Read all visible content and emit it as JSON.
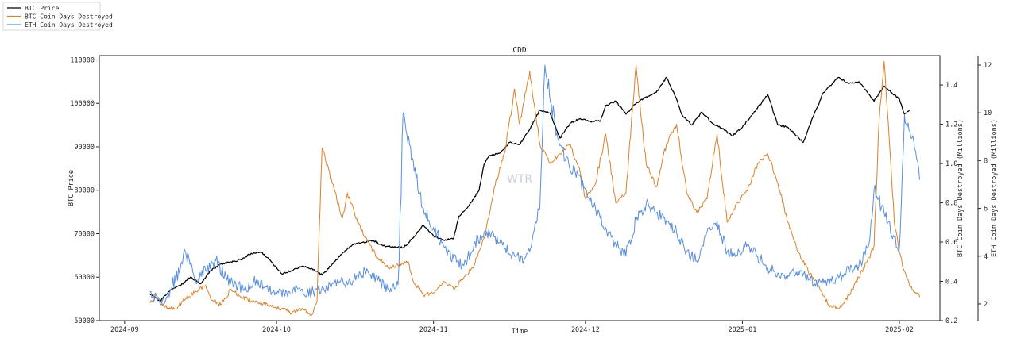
{
  "chart_data": {
    "type": "line",
    "title": "CDD",
    "xlabel": "Time",
    "ylabel_left": "BTC Price",
    "ylabel_right1": "BTC Coin Days Destroyed (Millions)",
    "ylabel_right2": "ETH Coin Days Destroyed (Millions)",
    "watermark": "WTR",
    "legend_position": "top-left",
    "grid": false,
    "x_range": [
      "2024-08-27",
      "2025-02-09"
    ],
    "x_ticks": [
      "2024-09",
      "2024-10",
      "2024-11",
      "2024-12",
      "2025-01",
      "2025-02"
    ],
    "y_left": {
      "range": [
        50000,
        111000
      ],
      "ticks": [
        50000,
        60000,
        70000,
        80000,
        90000,
        100000,
        110000
      ]
    },
    "y_right1": {
      "range": [
        0.2,
        1.55
      ],
      "ticks": [
        "0.2",
        "0.4",
        "0.6",
        "0.8",
        "1.0",
        "1.2",
        "1.4"
      ]
    },
    "y_right2": {
      "range": [
        1.3,
        12.4
      ],
      "ticks": [
        "2",
        "4",
        "6",
        "8",
        "10",
        "12"
      ]
    },
    "series": [
      {
        "name": "BTC Price",
        "axis": "left",
        "color": "#000000",
        "points": [
          [
            "2024-09-06",
            56000
          ],
          [
            "2024-09-08",
            54500
          ],
          [
            "2024-09-10",
            57000
          ],
          [
            "2024-09-12",
            58000
          ],
          [
            "2024-09-14",
            60000
          ],
          [
            "2024-09-16",
            58500
          ],
          [
            "2024-09-18",
            61500
          ],
          [
            "2024-09-20",
            63000
          ],
          [
            "2024-09-22",
            63500
          ],
          [
            "2024-09-24",
            64000
          ],
          [
            "2024-09-26",
            65500
          ],
          [
            "2024-09-28",
            65800
          ],
          [
            "2024-09-30",
            63500
          ],
          [
            "2024-10-02",
            60800
          ],
          [
            "2024-10-04",
            61500
          ],
          [
            "2024-10-06",
            62500
          ],
          [
            "2024-10-08",
            62000
          ],
          [
            "2024-10-10",
            60500
          ],
          [
            "2024-10-12",
            63000
          ],
          [
            "2024-10-14",
            65500
          ],
          [
            "2024-10-16",
            67500
          ],
          [
            "2024-10-18",
            68000
          ],
          [
            "2024-10-20",
            68500
          ],
          [
            "2024-10-22",
            67200
          ],
          [
            "2024-10-24",
            67000
          ],
          [
            "2024-10-26",
            66800
          ],
          [
            "2024-10-28",
            69000
          ],
          [
            "2024-10-30",
            72000
          ],
          [
            "2024-11-01",
            69500
          ],
          [
            "2024-11-03",
            68500
          ],
          [
            "2024-11-05",
            69000
          ],
          [
            "2024-11-06",
            74000
          ],
          [
            "2024-11-08",
            76500
          ],
          [
            "2024-11-10",
            80000
          ],
          [
            "2024-11-11",
            86000
          ],
          [
            "2024-11-12",
            88000
          ],
          [
            "2024-11-14",
            88500
          ],
          [
            "2024-11-16",
            91000
          ],
          [
            "2024-11-18",
            90500
          ],
          [
            "2024-11-20",
            94000
          ],
          [
            "2024-11-22",
            98500
          ],
          [
            "2024-11-24",
            97800
          ],
          [
            "2024-11-26",
            92000
          ],
          [
            "2024-11-28",
            95500
          ],
          [
            "2024-11-30",
            96500
          ],
          [
            "2024-12-02",
            95800
          ],
          [
            "2024-12-04",
            96000
          ],
          [
            "2024-12-05",
            99500
          ],
          [
            "2024-12-07",
            100500
          ],
          [
            "2024-12-09",
            97500
          ],
          [
            "2024-12-11",
            100000
          ],
          [
            "2024-12-13",
            101500
          ],
          [
            "2024-12-15",
            102500
          ],
          [
            "2024-12-17",
            106000
          ],
          [
            "2024-12-19",
            101000
          ],
          [
            "2024-12-20",
            97500
          ],
          [
            "2024-12-22",
            95000
          ],
          [
            "2024-12-24",
            98000
          ],
          [
            "2024-12-26",
            95500
          ],
          [
            "2024-12-28",
            94200
          ],
          [
            "2024-12-30",
            92500
          ],
          [
            "2025-01-01",
            94500
          ],
          [
            "2025-01-03",
            97500
          ],
          [
            "2025-01-06",
            102000
          ],
          [
            "2025-01-08",
            95000
          ],
          [
            "2025-01-10",
            94500
          ],
          [
            "2025-01-13",
            91000
          ],
          [
            "2025-01-15",
            97000
          ],
          [
            "2025-01-17",
            102500
          ],
          [
            "2025-01-20",
            106000
          ],
          [
            "2025-01-22",
            104500
          ],
          [
            "2025-01-24",
            105000
          ],
          [
            "2025-01-27",
            100500
          ],
          [
            "2025-01-29",
            104000
          ],
          [
            "2025-02-01",
            101000
          ],
          [
            "2025-02-02",
            97500
          ],
          [
            "2025-02-03",
            98500
          ]
        ]
      },
      {
        "name": "BTC Coin Days Destroyed",
        "axis": "right1",
        "color": "#d9822b",
        "points": [
          [
            "2024-09-06",
            0.29
          ],
          [
            "2024-09-07",
            0.33
          ],
          [
            "2024-09-09",
            0.27
          ],
          [
            "2024-09-11",
            0.26
          ],
          [
            "2024-09-13",
            0.31
          ],
          [
            "2024-09-15",
            0.35
          ],
          [
            "2024-09-17",
            0.38
          ],
          [
            "2024-09-18",
            0.31
          ],
          [
            "2024-09-20",
            0.28
          ],
          [
            "2024-09-22",
            0.36
          ],
          [
            "2024-09-24",
            0.32
          ],
          [
            "2024-09-26",
            0.3
          ],
          [
            "2024-09-28",
            0.29
          ],
          [
            "2024-09-30",
            0.27
          ],
          [
            "2024-10-02",
            0.26
          ],
          [
            "2024-10-04",
            0.24
          ],
          [
            "2024-10-06",
            0.26
          ],
          [
            "2024-10-08",
            0.23
          ],
          [
            "2024-10-09",
            0.3
          ],
          [
            "2024-10-10",
            1.08
          ],
          [
            "2024-10-12",
            0.9
          ],
          [
            "2024-10-14",
            0.72
          ],
          [
            "2024-10-15",
            0.85
          ],
          [
            "2024-10-17",
            0.7
          ],
          [
            "2024-10-19",
            0.6
          ],
          [
            "2024-10-21",
            0.52
          ],
          [
            "2024-10-23",
            0.47
          ],
          [
            "2024-10-25",
            0.48
          ],
          [
            "2024-10-27",
            0.5
          ],
          [
            "2024-10-28",
            0.4
          ],
          [
            "2024-10-30",
            0.33
          ],
          [
            "2024-11-01",
            0.34
          ],
          [
            "2024-11-03",
            0.4
          ],
          [
            "2024-11-05",
            0.36
          ],
          [
            "2024-11-07",
            0.42
          ],
          [
            "2024-11-09",
            0.48
          ],
          [
            "2024-11-11",
            0.62
          ],
          [
            "2024-11-13",
            0.88
          ],
          [
            "2024-11-15",
            1.05
          ],
          [
            "2024-11-17",
            1.38
          ],
          [
            "2024-11-18",
            1.2
          ],
          [
            "2024-11-20",
            1.47
          ],
          [
            "2024-11-22",
            1.1
          ],
          [
            "2024-11-24",
            1.0
          ],
          [
            "2024-11-26",
            1.05
          ],
          [
            "2024-11-28",
            1.1
          ],
          [
            "2024-11-30",
            0.95
          ],
          [
            "2024-12-01",
            0.82
          ],
          [
            "2024-12-03",
            0.9
          ],
          [
            "2024-12-05",
            1.15
          ],
          [
            "2024-12-07",
            0.8
          ],
          [
            "2024-12-09",
            0.85
          ],
          [
            "2024-12-11",
            1.5
          ],
          [
            "2024-12-13",
            1.0
          ],
          [
            "2024-12-15",
            0.88
          ],
          [
            "2024-12-17",
            1.1
          ],
          [
            "2024-12-19",
            1.2
          ],
          [
            "2024-12-21",
            0.85
          ],
          [
            "2024-12-23",
            0.75
          ],
          [
            "2024-12-25",
            0.82
          ],
          [
            "2024-12-27",
            1.15
          ],
          [
            "2024-12-29",
            0.7
          ],
          [
            "2024-12-31",
            0.8
          ],
          [
            "2025-01-02",
            0.86
          ],
          [
            "2025-01-04",
            1.0
          ],
          [
            "2025-01-06",
            1.05
          ],
          [
            "2025-01-08",
            0.9
          ],
          [
            "2025-01-10",
            0.7
          ],
          [
            "2025-01-12",
            0.55
          ],
          [
            "2025-01-14",
            0.45
          ],
          [
            "2025-01-16",
            0.38
          ],
          [
            "2025-01-18",
            0.28
          ],
          [
            "2025-01-20",
            0.26
          ],
          [
            "2025-01-22",
            0.33
          ],
          [
            "2025-01-24",
            0.42
          ],
          [
            "2025-01-26",
            0.52
          ],
          [
            "2025-01-27",
            0.58
          ],
          [
            "2025-01-28",
            1.22
          ],
          [
            "2025-01-29",
            1.52
          ],
          [
            "2025-01-30",
            1.12
          ],
          [
            "2025-01-31",
            0.7
          ],
          [
            "2025-02-01",
            0.55
          ],
          [
            "2025-02-02",
            0.45
          ],
          [
            "2025-02-03",
            0.38
          ],
          [
            "2025-02-05",
            0.32
          ]
        ]
      },
      {
        "name": "ETH Coin Days Destroyed",
        "axis": "right2",
        "color": "#5b8fd9",
        "points": [
          [
            "2024-09-06",
            2.5
          ],
          [
            "2024-09-08",
            2.0
          ],
          [
            "2024-09-10",
            2.6
          ],
          [
            "2024-09-12",
            3.5
          ],
          [
            "2024-09-13",
            4.2
          ],
          [
            "2024-09-15",
            3.0
          ],
          [
            "2024-09-17",
            3.4
          ],
          [
            "2024-09-19",
            3.8
          ],
          [
            "2024-09-21",
            3.1
          ],
          [
            "2024-09-23",
            2.8
          ],
          [
            "2024-09-25",
            2.6
          ],
          [
            "2024-09-27",
            3.0
          ],
          [
            "2024-09-29",
            2.7
          ],
          [
            "2024-10-01",
            2.4
          ],
          [
            "2024-10-03",
            2.5
          ],
          [
            "2024-10-05",
            2.7
          ],
          [
            "2024-10-07",
            2.4
          ],
          [
            "2024-10-09",
            2.6
          ],
          [
            "2024-10-11",
            2.7
          ],
          [
            "2024-10-13",
            3.0
          ],
          [
            "2024-10-15",
            2.8
          ],
          [
            "2024-10-17",
            3.2
          ],
          [
            "2024-10-19",
            3.4
          ],
          [
            "2024-10-21",
            3.0
          ],
          [
            "2024-10-23",
            2.6
          ],
          [
            "2024-10-25",
            2.8
          ],
          [
            "2024-10-26",
            10.0
          ],
          [
            "2024-10-28",
            8.0
          ],
          [
            "2024-10-30",
            6.0
          ],
          [
            "2024-11-01",
            5.2
          ],
          [
            "2024-11-03",
            4.4
          ],
          [
            "2024-11-05",
            3.9
          ],
          [
            "2024-11-07",
            3.6
          ],
          [
            "2024-11-09",
            4.5
          ],
          [
            "2024-11-11",
            5.0
          ],
          [
            "2024-11-13",
            4.8
          ],
          [
            "2024-11-15",
            4.3
          ],
          [
            "2024-11-17",
            4.0
          ],
          [
            "2024-11-19",
            3.9
          ],
          [
            "2024-11-20",
            4.2
          ],
          [
            "2024-11-22",
            6.0
          ],
          [
            "2024-11-23",
            12.0
          ],
          [
            "2024-11-25",
            9.5
          ],
          [
            "2024-11-27",
            8.0
          ],
          [
            "2024-11-29",
            7.5
          ],
          [
            "2024-12-01",
            6.8
          ],
          [
            "2024-12-03",
            6.0
          ],
          [
            "2024-12-05",
            5.2
          ],
          [
            "2024-12-07",
            4.5
          ],
          [
            "2024-12-09",
            4.0
          ],
          [
            "2024-12-11",
            5.5
          ],
          [
            "2024-12-13",
            6.2
          ],
          [
            "2024-12-15",
            5.8
          ],
          [
            "2024-12-17",
            5.5
          ],
          [
            "2024-12-19",
            5.0
          ],
          [
            "2024-12-21",
            4.2
          ],
          [
            "2024-12-23",
            3.8
          ],
          [
            "2024-12-25",
            5.0
          ],
          [
            "2024-12-27",
            5.5
          ],
          [
            "2024-12-29",
            4.2
          ],
          [
            "2024-12-31",
            4.0
          ],
          [
            "2025-01-02",
            4.5
          ],
          [
            "2025-01-04",
            4.0
          ],
          [
            "2025-01-06",
            3.5
          ],
          [
            "2025-01-08",
            3.3
          ],
          [
            "2025-01-10",
            3.2
          ],
          [
            "2025-01-12",
            3.4
          ],
          [
            "2025-01-14",
            3.0
          ],
          [
            "2025-01-16",
            2.9
          ],
          [
            "2025-01-18",
            3.0
          ],
          [
            "2025-01-20",
            3.1
          ],
          [
            "2025-01-22",
            3.4
          ],
          [
            "2025-01-24",
            3.6
          ],
          [
            "2025-01-26",
            4.5
          ],
          [
            "2025-01-27",
            6.8
          ],
          [
            "2025-01-29",
            5.8
          ],
          [
            "2025-01-31",
            4.8
          ],
          [
            "2025-02-01",
            4.3
          ],
          [
            "2025-02-02",
            9.9
          ],
          [
            "2025-02-04",
            8.5
          ],
          [
            "2025-02-05",
            7.2
          ]
        ]
      }
    ]
  }
}
